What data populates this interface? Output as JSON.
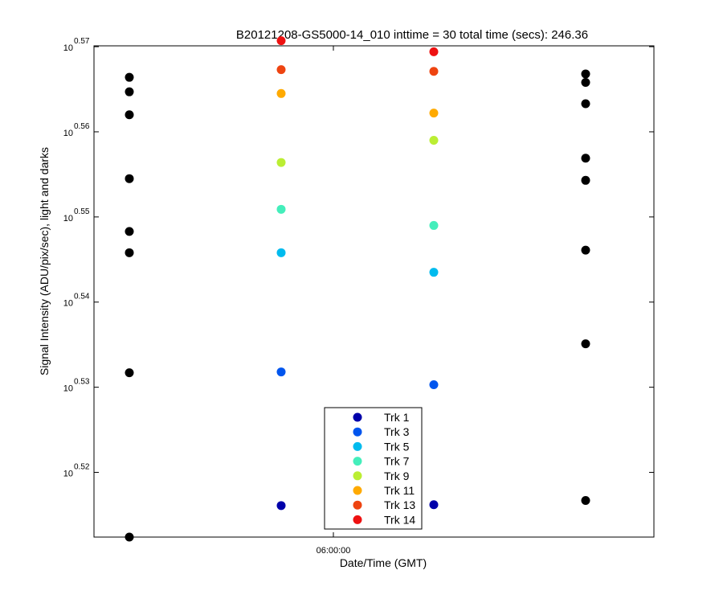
{
  "chart_data": {
    "type": "scatter",
    "title": "B20121208-GS5000-14_010 inttime = 30 total time (secs): 246.36",
    "xlabel": "Date/Time (GMT)",
    "ylabel": "Signal Intensity (ADU/pix/sec), light and darks",
    "y_scale": "log",
    "x_ticks": [
      "06:00:00"
    ],
    "y_tick_base": "10",
    "y_tick_exponents": [
      "0.52",
      "0.53",
      "0.54",
      "0.55",
      "0.56",
      "0.57"
    ],
    "ylim_exponent": [
      0.5124,
      0.5701
    ],
    "x_groups": [
      "group-1",
      "group-2",
      "group-3",
      "group-4"
    ],
    "darks_color": "#000000",
    "darks": [
      {
        "group": 0,
        "y_exp": [
          0.5664,
          0.5647,
          0.562,
          0.5545,
          0.5483,
          0.5458,
          0.5317,
          0.5124
        ]
      },
      {
        "group": 3,
        "y_exp": [
          0.5668,
          0.5658,
          0.5633,
          0.5569,
          0.5543,
          0.5461,
          0.5351,
          0.5167
        ]
      }
    ],
    "series": [
      {
        "name": "Trk 1",
        "color": "#0000aa",
        "y_exp": [
          null,
          0.5161,
          0.5162,
          null
        ]
      },
      {
        "name": "Trk 3",
        "color": "#0055ee",
        "y_exp": [
          null,
          0.5318,
          0.5303,
          null
        ]
      },
      {
        "name": "Trk 5",
        "color": "#00bbee",
        "y_exp": [
          null,
          0.5458,
          0.5435,
          null
        ]
      },
      {
        "name": "Trk 7",
        "color": "#44eebb",
        "y_exp": [
          null,
          0.5509,
          0.549,
          null
        ]
      },
      {
        "name": "Trk 9",
        "color": "#bbee33",
        "y_exp": [
          null,
          0.5564,
          0.559,
          null
        ]
      },
      {
        "name": "Trk 11",
        "color": "#ffaa00",
        "y_exp": [
          null,
          0.5645,
          0.5622,
          null
        ]
      },
      {
        "name": "Trk 13",
        "color": "#ee4411",
        "y_exp": [
          null,
          0.5673,
          0.5671,
          null
        ]
      },
      {
        "name": "Trk 14",
        "color": "#ee1111",
        "y_exp": [
          null,
          0.5707,
          0.5694,
          null
        ]
      }
    ],
    "legend": "bottom-center",
    "grid": false
  }
}
